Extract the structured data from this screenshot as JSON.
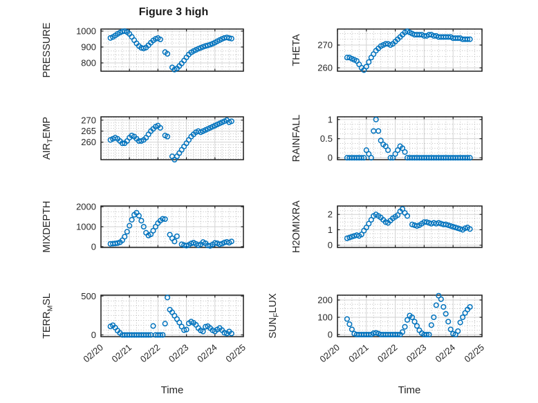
{
  "title": "Figure 3 high",
  "xlabel": "Time",
  "colors": {
    "marker": "#0072BD",
    "axis": "#1f1f1f",
    "grid_major": "#d2d2d2",
    "grid_minor": "#b8b8b8",
    "text": "#262626",
    "background": "#ffffff"
  },
  "chart_data": {
    "type": "scatter",
    "marker": "open-circle",
    "layout": "4 rows x 2 columns, shared time axis, grid on, minor grid dotted, no legend",
    "x_tick_labels": [
      "02/20",
      "02/21",
      "02/22",
      "02/23",
      "02/24",
      "02/25"
    ],
    "x_tick_values": [
      0,
      1,
      2,
      3,
      4,
      5
    ],
    "xlim": [
      0,
      5
    ],
    "x_minor_step": 0.25,
    "time_base": {
      "t0": 0.3333,
      "dt": 0.08333,
      "unit": "days after 02/20 00:00"
    },
    "subplots": [
      {
        "id": "pressure",
        "col": 0,
        "row": 0,
        "ylabel_pre": "PRESSURE",
        "ylabel_sub": "",
        "ylabel_post": "",
        "ylim": [
          748,
          1013
        ],
        "yticks": [
          800,
          900,
          1000
        ],
        "ytick_labels": [
          "800",
          "900",
          "1000"
        ],
        "y_minor_step": 25,
        "values": [
          957,
          963,
          972,
          982,
          991,
          998,
          1000,
          994,
          982,
          964,
          943,
          923,
          906,
          895,
          891,
          897,
          911,
          927,
          941,
          951,
          956,
          948,
          null,
          868,
          857,
          null,
          772,
          758,
          765,
          780,
          797,
          815,
          835,
          853,
          866,
          875,
          882,
          889,
          895,
          901,
          906,
          910,
          915,
          921,
          928,
          936,
          944,
          951,
          957,
          960,
          956,
          953
        ]
      },
      {
        "id": "theta",
        "col": 1,
        "row": 0,
        "ylabel_pre": "THETA",
        "ylabel_sub": "",
        "ylabel_post": "",
        "ylim": [
          258.5,
          277
        ],
        "yticks": [
          260,
          270
        ],
        "ytick_labels": [
          "260",
          "270"
        ],
        "y_minor_step": 2.5,
        "values": [
          264.5,
          264.5,
          264,
          263.5,
          263,
          261.5,
          260,
          259,
          260.5,
          262.5,
          264.5,
          266,
          267.5,
          268.5,
          269.5,
          270,
          270.5,
          270.5,
          270,
          270.5,
          271.5,
          272.5,
          273.5,
          274.5,
          275.5,
          276,
          275.5,
          275,
          274.5,
          274.5,
          274.5,
          274.5,
          274,
          274,
          274.5,
          274.5,
          274,
          274,
          273.5,
          273.5,
          273.5,
          273.5,
          273.5,
          273.5,
          273,
          273,
          273,
          273,
          272.5,
          272.5,
          272.5,
          272.5
        ]
      },
      {
        "id": "air_temp",
        "col": 0,
        "row": 1,
        "ylabel_pre": "AIR",
        "ylabel_sub": "T",
        "ylabel_post": "EMP",
        "ylim": [
          252,
          271.5
        ],
        "yticks": [
          260,
          265,
          270
        ],
        "ytick_labels": [
          "260",
          "265",
          "270"
        ],
        "y_minor_step": 1.25,
        "values": [
          261,
          261.5,
          262,
          261.5,
          260.5,
          259.5,
          259.5,
          260.5,
          262,
          263,
          262.5,
          261.5,
          260.5,
          260.5,
          261,
          262,
          263.5,
          265,
          266,
          267,
          267.5,
          266.5,
          null,
          263,
          262.5,
          null,
          253.5,
          252,
          253.5,
          255,
          256.5,
          258,
          259.5,
          261,
          262.5,
          263.5,
          264.5,
          265,
          264.5,
          265,
          265.5,
          266,
          266.5,
          267,
          267.5,
          268,
          268.5,
          269,
          269.5,
          270,
          269,
          269.5
        ]
      },
      {
        "id": "rainfall",
        "col": 1,
        "row": 1,
        "ylabel_pre": "RAINFALL",
        "ylabel_sub": "",
        "ylabel_post": "",
        "ylim": [
          -0.05,
          1.07
        ],
        "yticks": [
          0,
          0.5,
          1
        ],
        "ytick_labels": [
          "0",
          "0.5",
          "1"
        ],
        "y_minor_step": 0.125,
        "values": [
          0,
          0,
          0,
          0,
          0,
          0,
          0,
          0,
          0.2,
          0.1,
          0,
          0.7,
          1,
          0.7,
          0.45,
          0.35,
          0.3,
          0.2,
          0,
          0,
          0.1,
          0.2,
          0.3,
          0.25,
          0.15,
          0,
          0,
          0,
          0,
          0,
          0,
          0,
          0,
          0,
          0,
          0,
          0,
          0,
          0,
          0,
          0,
          0,
          0,
          0,
          0,
          0,
          0,
          0,
          0,
          0,
          0,
          0
        ]
      },
      {
        "id": "mixdepth",
        "col": 0,
        "row": 2,
        "ylabel_pre": "MIXDEPTH",
        "ylabel_sub": "",
        "ylabel_post": "",
        "ylim": [
          -40,
          2040
        ],
        "yticks": [
          0,
          1000,
          2000
        ],
        "ytick_labels": [
          "0",
          "1000",
          "2000"
        ],
        "y_minor_step": 250,
        "values": [
          140,
          150,
          160,
          180,
          220,
          320,
          500,
          750,
          1050,
          1350,
          1600,
          1700,
          1550,
          1300,
          1000,
          700,
          560,
          620,
          800,
          1000,
          1180,
          1300,
          1400,
          1380,
          null,
          600,
          420,
          260,
          520,
          null,
          120,
          80,
          50,
          90,
          160,
          200,
          140,
          70,
          120,
          230,
          170,
          60,
          40,
          110,
          190,
          170,
          120,
          150,
          210,
          240,
          200,
          260
        ]
      },
      {
        "id": "h2omixra",
        "col": 1,
        "row": 2,
        "ylabel_pre": "H2OMIXRA",
        "ylabel_sub": "",
        "ylabel_post": "",
        "ylim": [
          -0.15,
          2.55
        ],
        "yticks": [
          0,
          1,
          2
        ],
        "ytick_labels": [
          "0",
          "1",
          "2"
        ],
        "y_minor_step": 0.25,
        "values": [
          0.45,
          0.5,
          0.55,
          0.6,
          0.65,
          0.6,
          0.7,
          0.95,
          1.15,
          1.4,
          1.65,
          1.9,
          2,
          1.9,
          1.8,
          1.65,
          1.5,
          1.45,
          1.6,
          1.75,
          1.85,
          1.95,
          2.2,
          2.35,
          2.1,
          1.9,
          null,
          1.35,
          1.3,
          1.25,
          1.3,
          1.4,
          1.5,
          1.5,
          1.45,
          1.4,
          1.45,
          1.4,
          1.45,
          1.4,
          1.35,
          1.35,
          1.3,
          1.25,
          1.2,
          1.15,
          1.1,
          1.05,
          1,
          1.1,
          1.15,
          1.05
        ]
      },
      {
        "id": "terr_msl",
        "col": 0,
        "row": 3,
        "ylabel_pre": "TERR",
        "ylabel_sub": "M",
        "ylabel_post": "SL",
        "ylim": [
          -22,
          512
        ],
        "yticks": [
          0,
          500
        ],
        "ytick_labels": [
          "0",
          "500"
        ],
        "y_minor_step": 62.5,
        "values": [
          110,
          125,
          95,
          55,
          25,
          0,
          0,
          0,
          0,
          0,
          0,
          0,
          0,
          0,
          0,
          0,
          0,
          0,
          115,
          0,
          0,
          0,
          0,
          145,
          482,
          325,
          292,
          248,
          204,
          160,
          108,
          62,
          70,
          150,
          172,
          155,
          130,
          88,
          58,
          45,
          105,
          112,
          88,
          60,
          45,
          70,
          88,
          62,
          28,
          18,
          45,
          18
        ]
      },
      {
        "id": "sun_flux",
        "col": 1,
        "row": 3,
        "ylabel_pre": "SUN",
        "ylabel_sub": "F",
        "ylabel_post": "LUX",
        "ylim": [
          -12,
          228
        ],
        "yticks": [
          0,
          100,
          200
        ],
        "ytick_labels": [
          "0",
          "100",
          "200"
        ],
        "y_minor_step": 25,
        "values": [
          90,
          60,
          30,
          5,
          0,
          0,
          0,
          0,
          0,
          0,
          0,
          8,
          10,
          6,
          0,
          0,
          0,
          0,
          0,
          0,
          0,
          0,
          0,
          15,
          45,
          85,
          110,
          100,
          75,
          50,
          25,
          8,
          0,
          0,
          0,
          55,
          100,
          170,
          225,
          205,
          160,
          120,
          75,
          30,
          5,
          0,
          20,
          70,
          100,
          125,
          145,
          160
        ]
      }
    ]
  }
}
